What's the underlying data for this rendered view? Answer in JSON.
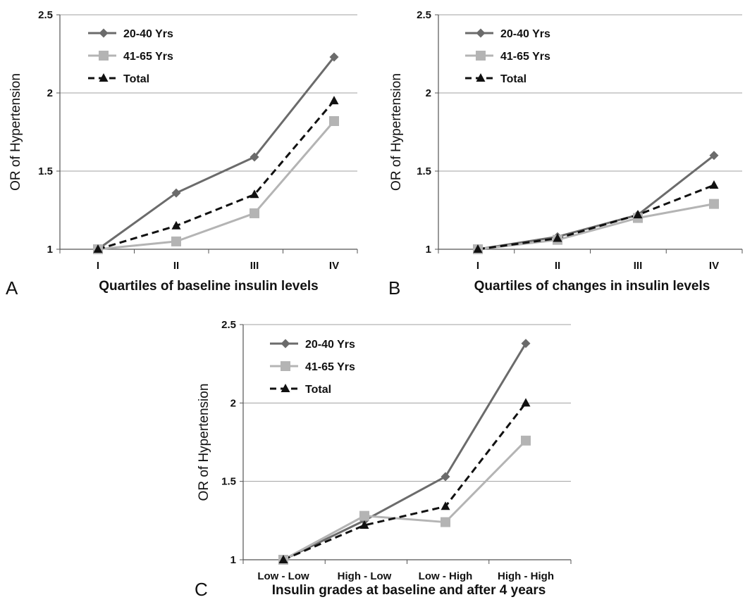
{
  "colors": {
    "series_20_40": "#6b6b6b",
    "series_41_65": "#b4b4b4",
    "series_total": "#111111",
    "gridline": "#a0a0a0",
    "axis": "#555555"
  },
  "chart_data": [
    {
      "panel": "A",
      "type": "line",
      "xlabel": "Quartiles of baseline insulin levels",
      "ylabel": "OR of Hypertension",
      "categories": [
        "I",
        "II",
        "III",
        "IV"
      ],
      "ylim": [
        1,
        2.5
      ],
      "yticks": [
        1,
        1.5,
        2,
        2.5
      ],
      "grid": true,
      "legend": "top-left",
      "series": [
        {
          "name": "20-40 Yrs",
          "marker": "diamond",
          "dash": "solid",
          "values": [
            1.0,
            1.36,
            1.59,
            2.23
          ]
        },
        {
          "name": "41-65 Yrs",
          "marker": "square",
          "dash": "solid",
          "values": [
            1.0,
            1.05,
            1.23,
            1.82
          ]
        },
        {
          "name": "Total",
          "marker": "triangle",
          "dash": "dashed",
          "values": [
            1.0,
            1.15,
            1.35,
            1.95
          ]
        }
      ]
    },
    {
      "panel": "B",
      "type": "line",
      "xlabel": "Quartiles of changes in insulin levels",
      "ylabel": "OR of Hypertension",
      "categories": [
        "I",
        "II",
        "III",
        "IV"
      ],
      "ylim": [
        1,
        2.5
      ],
      "yticks": [
        1,
        1.5,
        2,
        2.5
      ],
      "grid": true,
      "legend": "top-left",
      "series": [
        {
          "name": "20-40 Yrs",
          "marker": "diamond",
          "dash": "solid",
          "values": [
            1.0,
            1.08,
            1.22,
            1.6
          ]
        },
        {
          "name": "41-65 Yrs",
          "marker": "square",
          "dash": "solid",
          "values": [
            1.0,
            1.06,
            1.2,
            1.29
          ]
        },
        {
          "name": "Total",
          "marker": "triangle",
          "dash": "dashed",
          "values": [
            1.0,
            1.07,
            1.22,
            1.41
          ]
        }
      ]
    },
    {
      "panel": "C",
      "type": "line",
      "xlabel": "Insulin grades at baseline and after 4 years",
      "ylabel": "OR of Hypertension",
      "categories": [
        "Low - Low",
        "High - Low",
        "Low - High",
        "High - High"
      ],
      "ylim": [
        1,
        2.5
      ],
      "yticks": [
        1,
        1.5,
        2,
        2.5
      ],
      "grid": true,
      "legend": "top-left",
      "series": [
        {
          "name": "20-40 Yrs",
          "marker": "diamond",
          "dash": "solid",
          "values": [
            1.0,
            1.25,
            1.53,
            2.38
          ]
        },
        {
          "name": "41-65 Yrs",
          "marker": "square",
          "dash": "solid",
          "values": [
            1.0,
            1.28,
            1.24,
            1.76
          ]
        },
        {
          "name": "Total",
          "marker": "triangle",
          "dash": "dashed",
          "values": [
            1.0,
            1.22,
            1.34,
            2.0
          ]
        }
      ]
    }
  ]
}
